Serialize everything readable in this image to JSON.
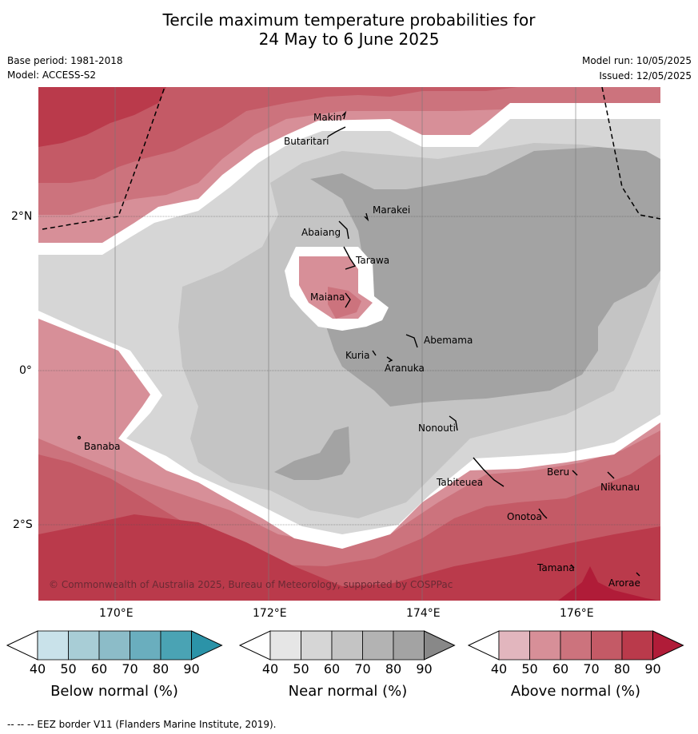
{
  "title_line1": "Tercile maximum temperature probabilities for",
  "title_line2": "24 May to 6 June 2025",
  "base_period": "Base period: 1981-2018",
  "model": "Model: ACCESS-S2",
  "model_run": "Model run: 10/05/2025",
  "issued": "Issued: 12/05/2025",
  "lat_labels": [
    "2°N",
    "0°",
    "2°S"
  ],
  "lon_labels": [
    "170°E",
    "172°E",
    "174°E",
    "176°E"
  ],
  "islands": [
    "Makin",
    "Butaritari",
    "Marakei",
    "Abaiang",
    "Tarawa",
    "Maiana",
    "Abemama",
    "Kuria",
    "Aranuka",
    "Nonouti",
    "Banaba",
    "Beru",
    "Tabiteuea",
    "Nikunau",
    "Onotoa",
    "Tamana",
    "Arorae"
  ],
  "copyright": "© Commonwealth of Australia 2025, Bureau of Meteorology, supported by COSPPac",
  "colorbars": [
    {
      "label": "Below normal (%)",
      "ticks": [
        "40",
        "50",
        "60",
        "70",
        "80",
        "90"
      ],
      "colors": [
        "#ffffff",
        "#c9e2ea",
        "#a8cdd6",
        "#8cbcc8",
        "#6aaebe",
        "#4aa3b4",
        "#2b93a8"
      ]
    },
    {
      "label": "Near normal (%)",
      "ticks": [
        "40",
        "50",
        "60",
        "70",
        "80",
        "90"
      ],
      "colors": [
        "#ffffff",
        "#e6e6e6",
        "#d6d6d6",
        "#c4c4c4",
        "#b3b3b3",
        "#a3a3a3",
        "#888888"
      ]
    },
    {
      "label": "Above normal (%)",
      "ticks": [
        "40",
        "50",
        "60",
        "70",
        "80",
        "90"
      ],
      "colors": [
        "#ffffff",
        "#e2b6be",
        "#d78f98",
        "#cc737d",
        "#c45a66",
        "#ba3a4b",
        "#b01c38"
      ]
    }
  ],
  "footer": "-- -- -- EEZ border V11 (Flanders Marine Institute, 2019)."
}
